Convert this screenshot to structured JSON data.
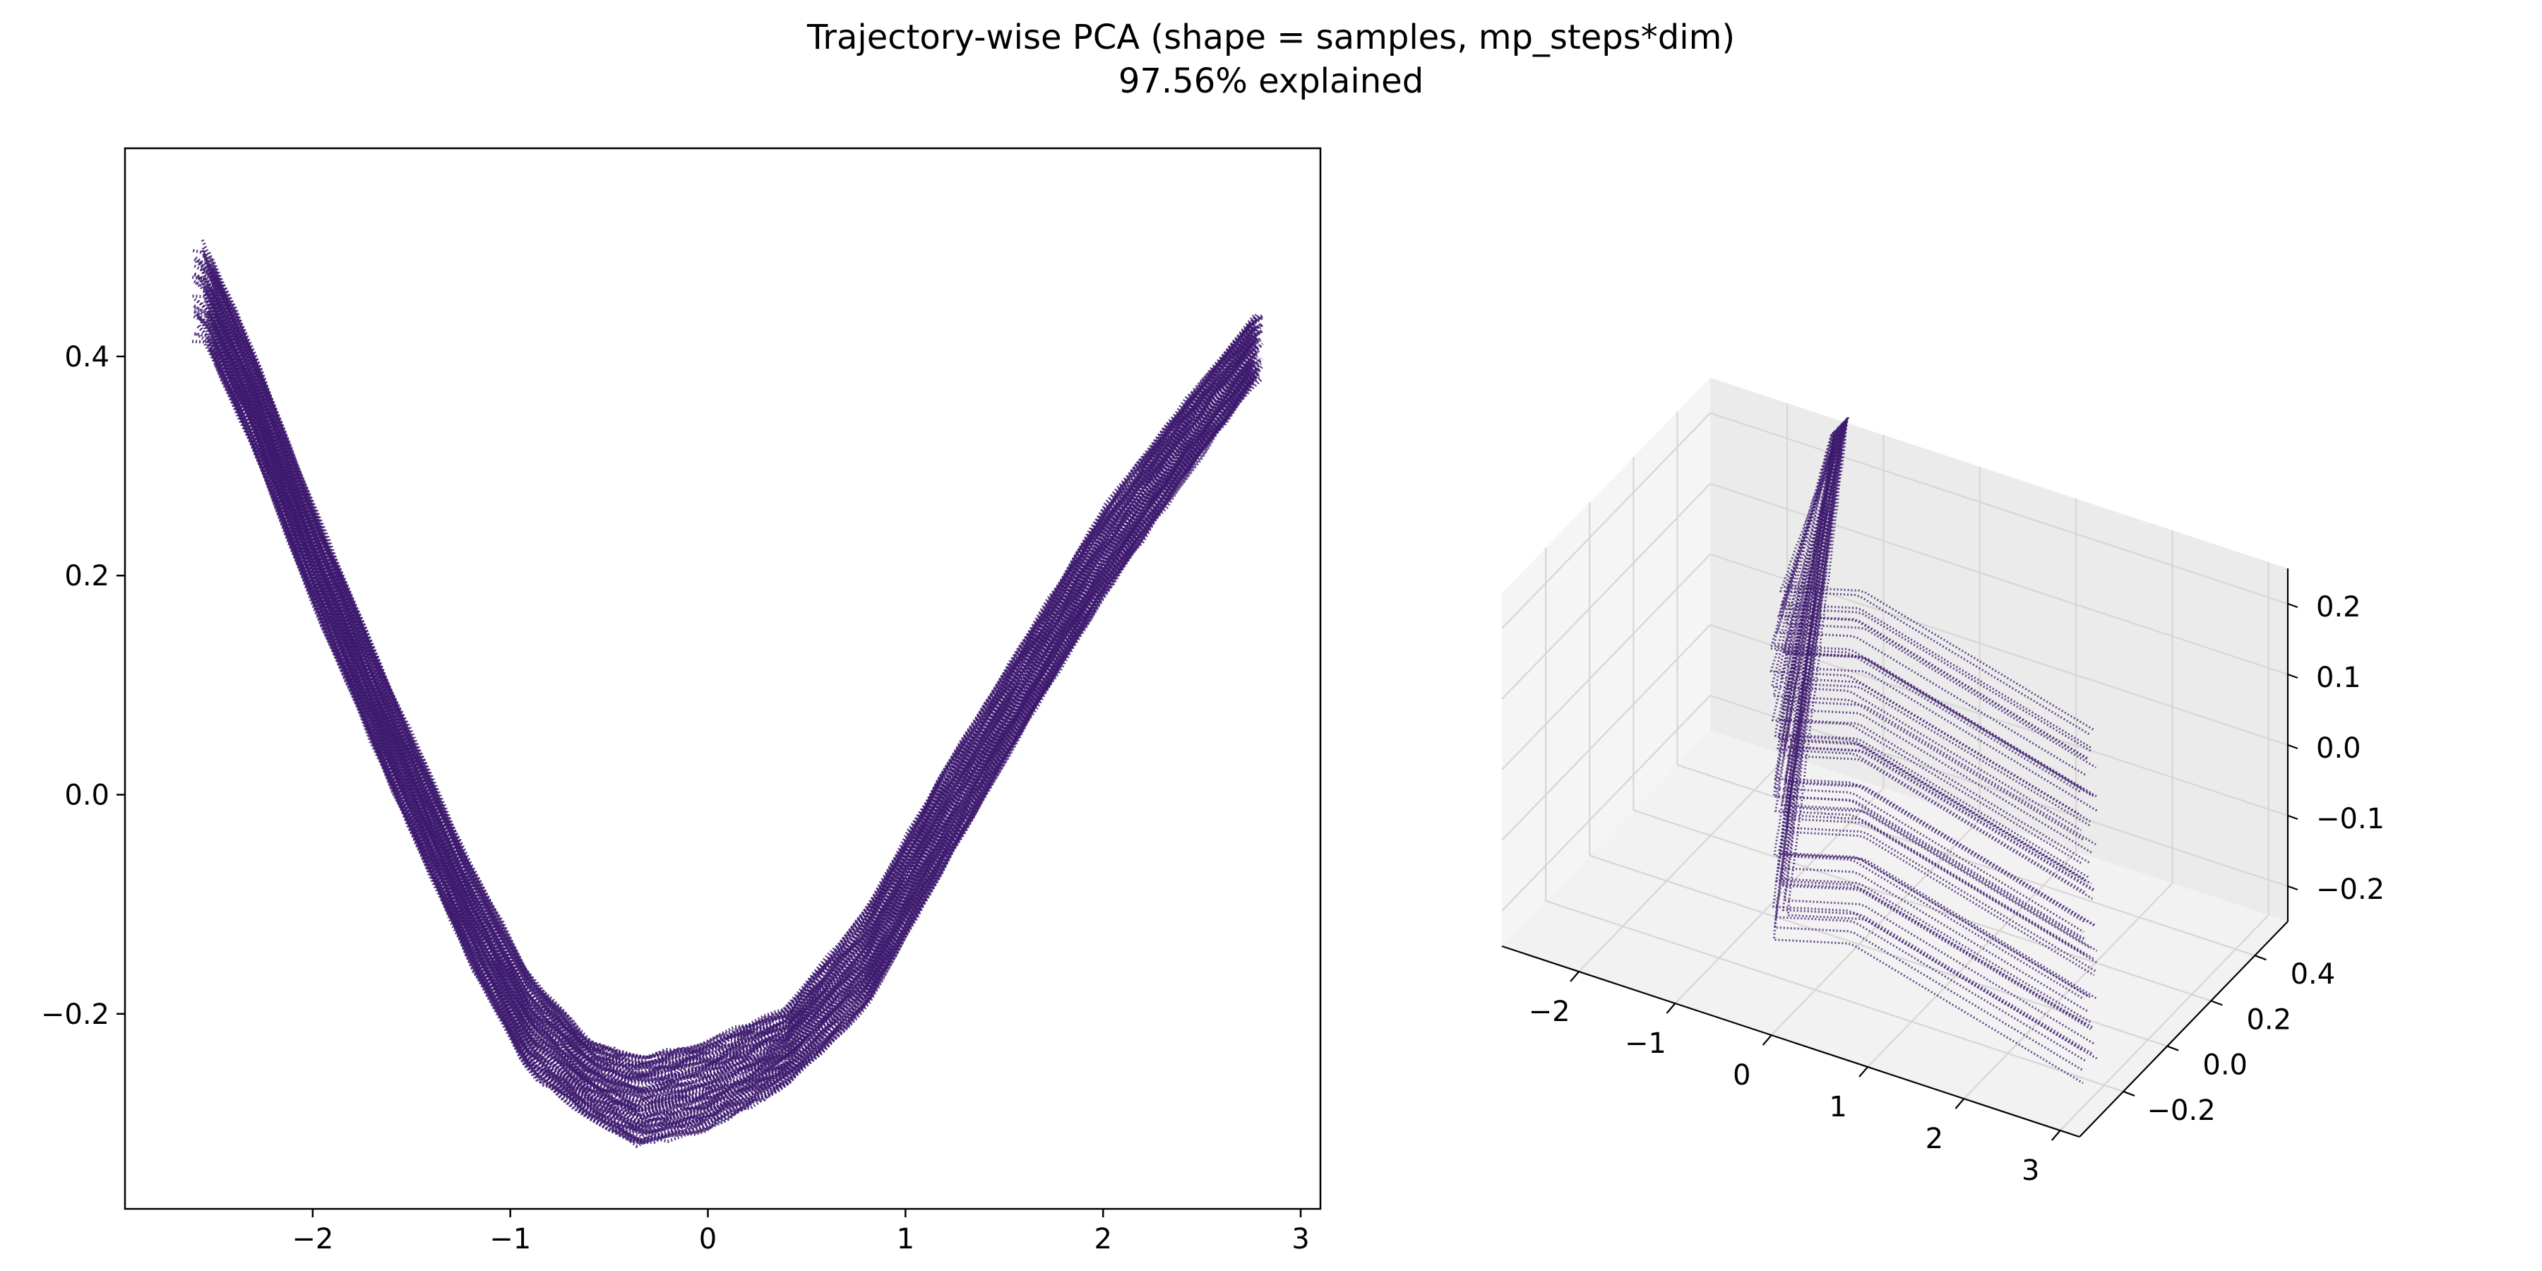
{
  "figure": {
    "title_line1": "Trajectory-wise PCA (shape = samples, mp_steps*dim)",
    "title_line2": "97.56% explained"
  },
  "colors": {
    "trajectory": "#3d1a6e",
    "axis": "#000000",
    "pane": "#f2f2f2",
    "grid": "#d6d6d6"
  },
  "chart_data": [
    {
      "type": "line",
      "panel": "2d",
      "title": "",
      "xlabel": "",
      "ylabel": "",
      "xlim": [
        -2.95,
        3.1
      ],
      "ylim": [
        -0.378,
        0.59
      ],
      "xticks": [
        -2,
        -1,
        0,
        1,
        2,
        3
      ],
      "xtick_labels": [
        "−2",
        "−1",
        "0",
        "1",
        "2",
        "3"
      ],
      "yticks": [
        -0.2,
        0.0,
        0.2,
        0.4
      ],
      "ytick_labels": [
        "−0.2",
        "0.0",
        "0.2",
        "0.4"
      ],
      "grid": false,
      "line_style": "dotted",
      "series_count_approx": 100,
      "center_curve": {
        "x": [
          -2.55,
          -2.3,
          -2.0,
          -1.6,
          -1.2,
          -0.9,
          -0.6,
          -0.35,
          0.0,
          0.4,
          0.8,
          1.2,
          1.6,
          2.0,
          2.4,
          2.78
        ],
        "y": [
          0.46,
          0.36,
          0.22,
          0.05,
          -0.11,
          -0.21,
          -0.26,
          -0.28,
          -0.265,
          -0.23,
          -0.15,
          -0.02,
          0.1,
          0.22,
          0.32,
          0.41
        ]
      },
      "band_half_width_y": [
        0.045,
        0.045,
        0.045,
        0.045,
        0.045,
        0.045,
        0.035,
        0.04,
        0.04,
        0.035,
        0.045,
        0.045,
        0.04,
        0.04,
        0.035,
        0.03
      ]
    },
    {
      "type": "line",
      "panel": "3d",
      "title": "",
      "xlabel": "",
      "ylabel": "",
      "zlabel": "",
      "xlim": [
        -2.8,
        3.2
      ],
      "ylim": [
        -0.4,
        0.55
      ],
      "zlim": [
        -0.25,
        0.25
      ],
      "xticks": [
        -2,
        -1,
        0,
        1,
        2,
        3
      ],
      "xtick_labels": [
        "−2",
        "−1",
        "0",
        "1",
        "2",
        "3"
      ],
      "yticks": [
        -0.2,
        0.0,
        0.2,
        0.4
      ],
      "ytick_labels": [
        "−0.2",
        "0.0",
        "0.2",
        "0.4"
      ],
      "zticks": [
        -0.2,
        -0.1,
        0.0,
        0.1,
        0.2
      ],
      "ztick_labels": [
        "−0.2",
        "−0.1",
        "0.0",
        "0.1",
        "0.2"
      ],
      "grid": true,
      "line_style": "dotted",
      "series_count_approx": 60
    }
  ]
}
